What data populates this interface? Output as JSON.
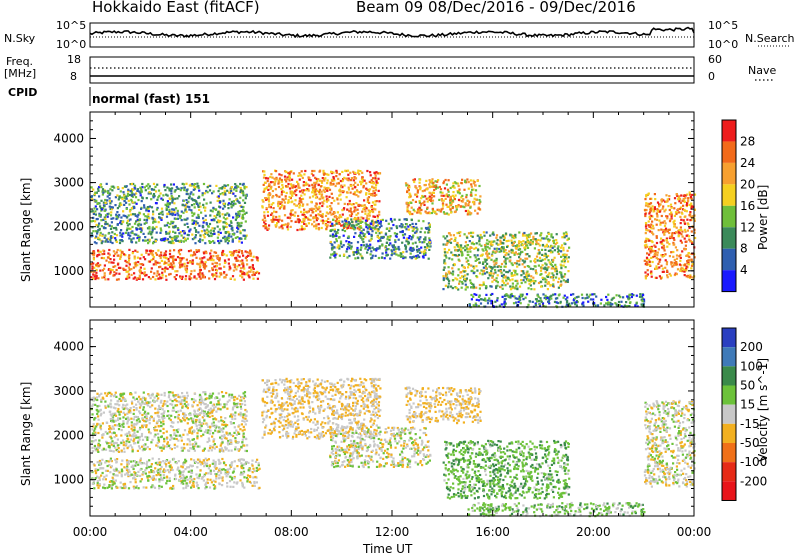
{
  "header": {
    "station": "Hokkaido East (fitACF)",
    "beam": "Beam 09",
    "date_range": "08/Dec/2016 - 09/Dec/2016"
  },
  "top_panels": {
    "nsky_label": "N.Sky",
    "nsearch_label": "N.Search",
    "nsky_ticks": [
      "10^5",
      "10^0"
    ],
    "nsearch_ticks": [
      "10^5",
      "10^0"
    ],
    "freq_label_1": "Freq.",
    "freq_label_2": "[MHz]",
    "freq_ticks": [
      "18",
      "8"
    ],
    "nave_label": "Nave",
    "nave_ticks": [
      "60",
      "0"
    ],
    "cpid_label": "CPID",
    "cpid_value": "normal (fast) 151"
  },
  "chart_data": [
    {
      "type": "heatmap",
      "name": "power",
      "xlabel": "Time UT",
      "ylabel": "Slant Range [km]",
      "x_ticks": [
        "00:00",
        "04:00",
        "08:00",
        "12:00",
        "16:00",
        "20:00",
        "00:00"
      ],
      "xlim": [
        0,
        24
      ],
      "y_ticks": [
        "1000",
        "2000",
        "3000",
        "4000"
      ],
      "ylim": [
        180,
        4600
      ],
      "colorbar_label": "Power [dB]",
      "colorbar_ticks": [
        "4",
        "8",
        "12",
        "16",
        "20",
        "24",
        "28"
      ],
      "colorbar_colors": [
        "#1a1aff",
        "#2f5fb0",
        "#3b8a5a",
        "#6fbf3a",
        "#f5d020",
        "#f7a030",
        "#f26a1a",
        "#ee1c1c"
      ],
      "colorbar_range": [
        0,
        30
      ],
      "regions": [
        {
          "t0": 0.0,
          "t1": 6.7,
          "r0": 820,
          "r1": 1500,
          "level": 24
        },
        {
          "t0": 0.0,
          "t1": 6.2,
          "r0": 1650,
          "r1": 3000,
          "level": 10
        },
        {
          "t0": 6.8,
          "t1": 11.5,
          "r0": 1950,
          "r1": 3300,
          "level": 22
        },
        {
          "t0": 9.5,
          "t1": 13.5,
          "r0": 1300,
          "r1": 2200,
          "level": 9
        },
        {
          "t0": 12.5,
          "t1": 15.5,
          "r0": 2300,
          "r1": 3100,
          "level": 20
        },
        {
          "t0": 14.0,
          "t1": 19.0,
          "r0": 600,
          "r1": 1900,
          "level": 14
        },
        {
          "t0": 15.0,
          "t1": 22.0,
          "r0": 200,
          "r1": 500,
          "level": 8
        },
        {
          "t0": 22.0,
          "t1": 24.0,
          "r0": 850,
          "r1": 2800,
          "level": 22
        }
      ]
    },
    {
      "type": "heatmap",
      "name": "velocity",
      "xlabel": "Time UT",
      "ylabel": "Slant Range [km]",
      "x_ticks": [
        "00:00",
        "04:00",
        "08:00",
        "12:00",
        "16:00",
        "20:00",
        "00:00"
      ],
      "xlim": [
        0,
        24
      ],
      "y_ticks": [
        "1000",
        "2000",
        "3000",
        "4000"
      ],
      "ylim": [
        180,
        4600
      ],
      "colorbar_label": "Velocity [m s^-1]",
      "colorbar_ticks": [
        "200",
        "100",
        "50",
        "15",
        "-15",
        "-50",
        "-100",
        "-200"
      ],
      "colorbar_colors": [
        "#2a3fc0",
        "#3f7ab8",
        "#3a8a4a",
        "#6cc23a",
        "#c8c8c8",
        "#f2b020",
        "#f07018",
        "#e62a16",
        "#e8141a"
      ],
      "regions": [
        {
          "t0": 0.0,
          "t1": 6.7,
          "r0": 820,
          "r1": 1500,
          "level": 0
        },
        {
          "t0": 0.0,
          "t1": 6.2,
          "r0": 1650,
          "r1": 3000,
          "level": 0
        },
        {
          "t0": 6.8,
          "t1": 11.5,
          "r0": 1950,
          "r1": 3300,
          "level": -15
        },
        {
          "t0": 9.5,
          "t1": 13.5,
          "r0": 1300,
          "r1": 2200,
          "level": 0
        },
        {
          "t0": 12.5,
          "t1": 15.5,
          "r0": 2300,
          "r1": 3100,
          "level": -20
        },
        {
          "t0": 14.0,
          "t1": 19.0,
          "r0": 600,
          "r1": 1900,
          "level": 40
        },
        {
          "t0": 15.0,
          "t1": 22.0,
          "r0": 200,
          "r1": 500,
          "level": 30
        },
        {
          "t0": 22.0,
          "t1": 24.0,
          "r0": 850,
          "r1": 2800,
          "level": 0
        }
      ]
    }
  ]
}
